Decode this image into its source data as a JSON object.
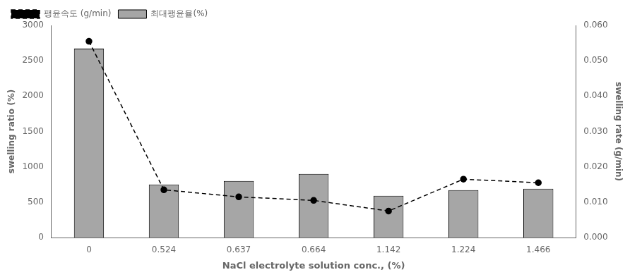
{
  "chart_data": {
    "type": "bar",
    "xlabel": "NaCl electrolyte solution conc., (%)",
    "ylabel": "swelling ratio (%)",
    "y2label": "swelling rate (g/min)",
    "categories": [
      "0",
      "0.524",
      "0.637",
      "0.664",
      "1.142",
      "1.224",
      "1.466"
    ],
    "series": [
      {
        "name": "최대팽윤율(%)",
        "type": "bar",
        "color": "#a6a6a6",
        "values": [
          2670,
          750,
          800,
          900,
          590,
          670,
          690
        ]
      },
      {
        "name": "팽윤속도 (g/min)",
        "type": "line",
        "axis": "y2",
        "color": "#000000",
        "line_style": "dashed",
        "marker": "circle",
        "values": [
          0.0555,
          0.0135,
          0.0115,
          0.0105,
          0.0075,
          0.0165,
          0.0155
        ]
      }
    ],
    "ylim": [
      0,
      3000
    ],
    "yticks": [
      0,
      500,
      1000,
      1500,
      2000,
      2500,
      3000
    ],
    "y2lim": [
      0.0,
      0.06
    ],
    "y2ticks": [
      {
        "value": 0.0,
        "label": "0.000"
      },
      {
        "value": 0.01,
        "label": "0.010"
      },
      {
        "value": 0.02,
        "label": "0.020"
      },
      {
        "value": 0.03,
        "label": "0.030"
      },
      {
        "value": 0.04,
        "label": "0.040"
      },
      {
        "value": 0.05,
        "label": "0.050"
      },
      {
        "value": 0.06,
        "label": "0.060"
      }
    ],
    "grid": false,
    "legend": "upper left"
  }
}
